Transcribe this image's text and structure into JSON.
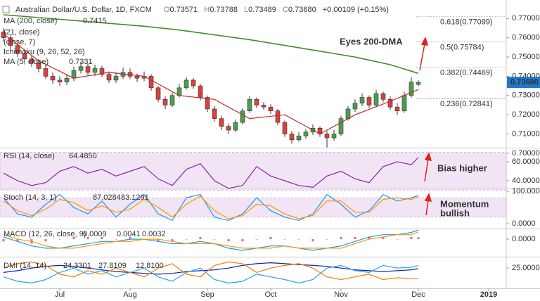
{
  "header": {
    "title": "Australian Dollar/U.S. Dollar, 1D, FXCM",
    "ohlc": [
      {
        "k": "O",
        "v": "0.73571"
      },
      {
        "k": "H",
        "v": "0.73788"
      },
      {
        "k": "L",
        "v": "0.73489"
      },
      {
        "k": "C",
        "v": "0.73680"
      }
    ],
    "change": "+0.00109 (+0.15%)"
  },
  "x_axis": {
    "xlim": [
      -0.5,
      71.5
    ],
    "xticks": [
      {
        "value": 8,
        "label": "Jul"
      },
      {
        "value": 18,
        "label": "Aug"
      },
      {
        "value": 29,
        "label": "Sep"
      },
      {
        "value": 38,
        "label": "Oct"
      },
      {
        "value": 48,
        "label": "Nov"
      },
      {
        "value": 59,
        "label": "Dec"
      },
      {
        "value": 69,
        "label": "2019"
      }
    ]
  },
  "chart_data": [
    {
      "type": "candlestick",
      "ylim": [
        0.70288,
        0.77962
      ],
      "yticks": [
        {
          "value": 0.77,
          "label": "0.77000"
        },
        {
          "value": 0.76,
          "label": "0.76000"
        },
        {
          "value": 0.75,
          "label": "0.75000"
        },
        {
          "value": 0.74,
          "label": "0.74000"
        },
        {
          "value": 0.73,
          "label": "0.73000"
        },
        {
          "value": 0.72,
          "label": "0.72000"
        },
        {
          "value": 0.71,
          "label": "0.71000"
        },
        {
          "value": 0.7,
          "label": "0.70000"
        }
      ],
      "up_color": "#4a9e52",
      "down_color": "#d9413a",
      "open": [
        0.763,
        0.76,
        0.756,
        0.752,
        0.749,
        0.747,
        0.744,
        0.74,
        0.738,
        0.737,
        0.739,
        0.743,
        0.745,
        0.742,
        0.744,
        0.741,
        0.738,
        0.74,
        0.742,
        0.74,
        0.739,
        0.74,
        0.734,
        0.728,
        0.725,
        0.73,
        0.734,
        0.738,
        0.735,
        0.729,
        0.723,
        0.718,
        0.714,
        0.712,
        0.716,
        0.722,
        0.728,
        0.725,
        0.724,
        0.722,
        0.716,
        0.71,
        0.707,
        0.709,
        0.711,
        0.713,
        0.71,
        0.708,
        0.71,
        0.718,
        0.723,
        0.726,
        0.729,
        0.725,
        0.731,
        0.728,
        0.724,
        0.722,
        0.73,
        0.73571
      ],
      "high": [
        0.765,
        0.7615,
        0.7575,
        0.754,
        0.751,
        0.749,
        0.746,
        0.742,
        0.74,
        0.741,
        0.745,
        0.7475,
        0.7465,
        0.746,
        0.7455,
        0.7425,
        0.742,
        0.7445,
        0.744,
        0.7415,
        0.7425,
        0.741,
        0.735,
        0.7295,
        0.7315,
        0.736,
        0.7395,
        0.739,
        0.736,
        0.73,
        0.7245,
        0.7195,
        0.7155,
        0.7175,
        0.7235,
        0.7295,
        0.729,
        0.7265,
        0.7255,
        0.723,
        0.717,
        0.7115,
        0.711,
        0.7125,
        0.715,
        0.714,
        0.7115,
        0.712,
        0.7195,
        0.7245,
        0.728,
        0.731,
        0.73,
        0.733,
        0.732,
        0.7295,
        0.726,
        0.732,
        0.7395,
        0.73788
      ],
      "low": [
        0.758,
        0.7545,
        0.75,
        0.747,
        0.745,
        0.742,
        0.7385,
        0.736,
        0.735,
        0.7355,
        0.7375,
        0.7415,
        0.7405,
        0.74,
        0.7395,
        0.7365,
        0.7365,
        0.7385,
        0.7385,
        0.737,
        0.7375,
        0.7325,
        0.7265,
        0.723,
        0.724,
        0.729,
        0.733,
        0.7335,
        0.7275,
        0.7215,
        0.7165,
        0.712,
        0.71,
        0.711,
        0.715,
        0.721,
        0.7235,
        0.7225,
        0.7205,
        0.7145,
        0.7085,
        0.705,
        0.706,
        0.7075,
        0.7095,
        0.7085,
        0.703,
        0.7065,
        0.709,
        0.717,
        0.7215,
        0.7245,
        0.7235,
        0.724,
        0.7265,
        0.7225,
        0.72,
        0.721,
        0.729,
        0.73489
      ],
      "close": [
        0.76,
        0.756,
        0.752,
        0.749,
        0.747,
        0.744,
        0.74,
        0.738,
        0.737,
        0.739,
        0.743,
        0.745,
        0.742,
        0.744,
        0.741,
        0.738,
        0.74,
        0.742,
        0.74,
        0.739,
        0.74,
        0.734,
        0.728,
        0.725,
        0.73,
        0.734,
        0.738,
        0.735,
        0.729,
        0.723,
        0.718,
        0.714,
        0.712,
        0.716,
        0.722,
        0.728,
        0.725,
        0.724,
        0.722,
        0.716,
        0.71,
        0.707,
        0.709,
        0.711,
        0.713,
        0.71,
        0.708,
        0.71,
        0.718,
        0.723,
        0.726,
        0.729,
        0.725,
        0.731,
        0.728,
        0.724,
        0.722,
        0.73,
        0.737,
        0.7368
      ],
      "series": [
        {
          "name": "MA (200, close)",
          "last_label": "0.7415",
          "color": "#4a8a2a",
          "x": [
            0,
            5,
            10,
            15,
            20,
            25,
            30,
            35,
            40,
            45,
            50,
            55,
            59
          ],
          "values": [
            0.772,
            0.7705,
            0.769,
            0.7675,
            0.766,
            0.764,
            0.7615,
            0.759,
            0.756,
            0.753,
            0.75,
            0.746,
            0.7415
          ]
        },
        {
          "name": "MA (5, close)",
          "last_label": "0.7331",
          "color": "#c62828",
          "x": [
            0,
            5,
            10,
            15,
            20,
            25,
            30,
            35,
            40,
            45,
            50,
            55,
            59
          ],
          "values": [
            0.762,
            0.748,
            0.739,
            0.742,
            0.74,
            0.73,
            0.728,
            0.718,
            0.72,
            0.71,
            0.72,
            0.727,
            0.7331
          ]
        }
      ],
      "other_legends": [
        "(21, close)",
        "(close, 7)",
        "Ichimoku (9, 26, 52, 26)"
      ],
      "fib": [
        {
          "value": 0.77099,
          "label": "0.618(0.77099)"
        },
        {
          "value": 0.75784,
          "label": "0.5(0.75784)"
        },
        {
          "value": 0.74469,
          "label": "0.382(0.74469)"
        },
        {
          "value": 0.72841,
          "label": "0.236(0.72841)"
        }
      ],
      "fib_color": "#43a047",
      "price_tag": {
        "value": 0.7368,
        "label": "0.73680"
      },
      "annotation": "Eyes 200-DMA"
    },
    {
      "type": "line",
      "title": "RSI (14, close)",
      "ylim": [
        31.85,
        74.1
      ],
      "band": [
        30,
        70
      ],
      "yticks": [
        {
          "value": 60,
          "label": "60.0000"
        },
        {
          "value": 40,
          "label": "40.0000"
        }
      ],
      "x": [
        0,
        2,
        4,
        6,
        8,
        10,
        12,
        14,
        16,
        18,
        20,
        22,
        24,
        26,
        28,
        30,
        32,
        34,
        36,
        38,
        40,
        42,
        44,
        46,
        48,
        50,
        52,
        54,
        56,
        58,
        59
      ],
      "series": [
        {
          "last_label": "64.4850",
          "color": "#8e24aa",
          "values": [
            48,
            40,
            35,
            38,
            50,
            55,
            48,
            52,
            45,
            50,
            55,
            42,
            35,
            52,
            58,
            40,
            32,
            35,
            55,
            45,
            40,
            35,
            33,
            45,
            50,
            42,
            38,
            55,
            60,
            57,
            64.485
          ]
        }
      ],
      "annotation": "Bias higher"
    },
    {
      "type": "line",
      "title": "Stoch (14, 3, 1)",
      "ylim": [
        -15.2,
        106.5
      ],
      "band": [
        20,
        80
      ],
      "yticks": [
        {
          "value": 100,
          "label": "100.0000"
        },
        {
          "value": 0,
          "label": "0.0000"
        }
      ],
      "x": [
        0,
        2,
        4,
        6,
        8,
        10,
        12,
        14,
        16,
        18,
        20,
        22,
        24,
        26,
        28,
        30,
        32,
        34,
        36,
        38,
        40,
        42,
        44,
        46,
        48,
        50,
        52,
        54,
        56,
        58,
        59
      ],
      "series": [
        {
          "last_label": "87.0284",
          "color": "#2196f3",
          "values": [
            80,
            30,
            20,
            60,
            90,
            50,
            30,
            70,
            20,
            60,
            90,
            30,
            10,
            80,
            90,
            20,
            10,
            30,
            80,
            40,
            20,
            10,
            30,
            90,
            60,
            20,
            40,
            90,
            70,
            80,
            87.0284
          ]
        },
        {
          "last_label": "83.1291",
          "color": "#ff9800",
          "values": [
            70,
            40,
            25,
            45,
            75,
            65,
            40,
            55,
            35,
            45,
            75,
            50,
            20,
            60,
            85,
            40,
            15,
            25,
            60,
            55,
            30,
            15,
            25,
            70,
            70,
            35,
            35,
            75,
            80,
            75,
            83.1291
          ]
        }
      ],
      "annotation": [
        "Momentum",
        "bullish"
      ]
    },
    {
      "type": "macd",
      "title": "MACD (12, 26, close, 9)",
      "ylim": [
        -0.0078,
        0.0044
      ],
      "yticks": [
        {
          "value": 0,
          "label": "0.0000"
        }
      ],
      "x": [
        0,
        2,
        4,
        6,
        8,
        10,
        12,
        14,
        16,
        18,
        20,
        22,
        24,
        26,
        28,
        30,
        32,
        34,
        36,
        38,
        40,
        42,
        44,
        46,
        48,
        50,
        52,
        54,
        56,
        58,
        59
      ],
      "series": [
        {
          "style": "histogram",
          "last_label": "0.0009",
          "color": "#e91e63",
          "values": [
            -0.001,
            -0.001,
            -0.002,
            -0.001,
            0,
            0.001,
            0.001,
            0.001,
            0,
            0.001,
            0,
            -0.001,
            -0.001,
            0,
            0.001,
            0,
            -0.001,
            -0.001,
            0,
            0.001,
            0,
            0,
            -0.001,
            0,
            0.001,
            0.001,
            0.001,
            0.001,
            0,
            0.001,
            0.0009
          ]
        },
        {
          "last_label": "0.0041",
          "color": "#2196f3",
          "values": [
            0.001,
            -0.001,
            -0.003,
            -0.004,
            -0.004,
            -0.003,
            -0.002,
            -0.001,
            -0.001,
            0,
            0,
            -0.001,
            -0.002,
            -0.002,
            -0.001,
            -0.002,
            -0.004,
            -0.005,
            -0.004,
            -0.003,
            -0.003,
            -0.004,
            -0.005,
            -0.004,
            -0.003,
            -0.001,
            0.001,
            0.002,
            0.002,
            0.003,
            0.0041
          ]
        },
        {
          "last_label": "0.0032",
          "color": "#ff9800",
          "values": [
            0.002,
            0,
            -0.001,
            -0.003,
            -0.004,
            -0.004,
            -0.003,
            -0.002,
            -0.001,
            -0.001,
            0,
            0,
            -0.001,
            -0.002,
            -0.002,
            -0.002,
            -0.003,
            -0.004,
            -0.004,
            -0.004,
            -0.003,
            -0.004,
            -0.004,
            -0.004,
            -0.004,
            -0.002,
            0,
            0.001,
            0.002,
            0.002,
            0.0032
          ]
        }
      ]
    },
    {
      "type": "line",
      "title": "DMI (14, 14)",
      "ylim": [
        2,
        37.1
      ],
      "yticks": [
        {
          "value": 25,
          "label": "25.0000"
        }
      ],
      "x": [
        0,
        2,
        4,
        6,
        8,
        10,
        12,
        14,
        16,
        18,
        20,
        22,
        24,
        26,
        28,
        30,
        32,
        34,
        36,
        38,
        40,
        42,
        44,
        46,
        48,
        50,
        52,
        54,
        56,
        58,
        59
      ],
      "series": [
        {
          "last_label": "24.3301",
          "color": "#0d1bb5",
          "values": [
            20,
            22,
            25,
            27,
            28,
            27,
            25,
            23,
            21,
            20,
            19,
            18,
            19,
            21,
            22,
            23,
            25,
            28,
            30,
            31,
            30,
            29,
            28,
            27,
            25,
            23,
            22,
            21,
            22,
            23,
            24.3301
          ]
        },
        {
          "last_label": "27.8109",
          "color": "#29a3e0",
          "values": [
            15,
            10,
            8,
            12,
            20,
            25,
            18,
            22,
            15,
            20,
            25,
            15,
            10,
            20,
            25,
            12,
            8,
            10,
            18,
            15,
            12,
            8,
            12,
            25,
            28,
            22,
            20,
            28,
            25,
            26,
            27.8109
          ]
        },
        {
          "last_label": "12.8100",
          "color": "#f57c00",
          "values": [
            25,
            30,
            32,
            28,
            18,
            15,
            22,
            18,
            25,
            20,
            15,
            25,
            30,
            18,
            15,
            28,
            32,
            30,
            20,
            25,
            28,
            30,
            25,
            15,
            12,
            15,
            18,
            12,
            14,
            13,
            12.81
          ]
        }
      ]
    }
  ]
}
